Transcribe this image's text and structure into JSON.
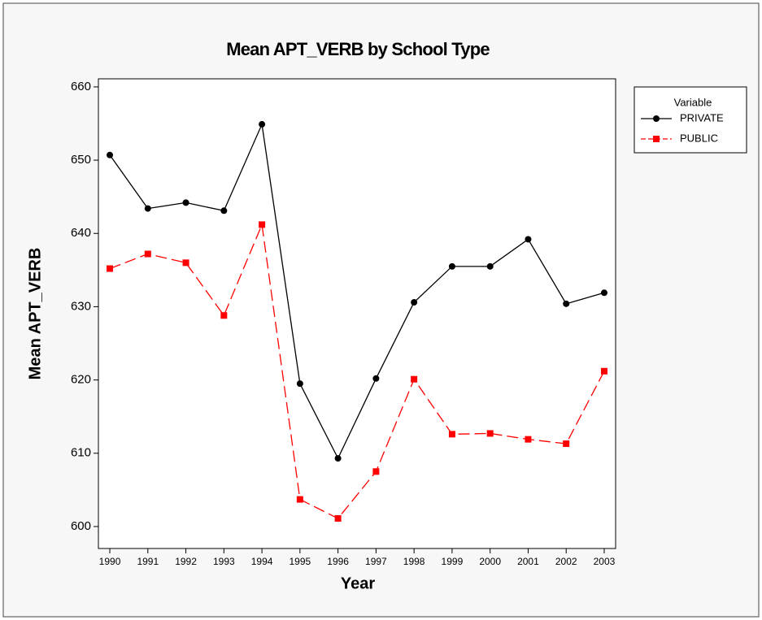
{
  "chart_data": {
    "type": "line",
    "title": "Mean APT_VERB by School Type",
    "x_label": "Year",
    "y_label": "Mean APT_VERB",
    "legend_title": "Variable",
    "x": [
      1990,
      1991,
      1992,
      1993,
      1994,
      1995,
      1996,
      1997,
      1998,
      1999,
      2000,
      2001,
      2002,
      2003
    ],
    "series": [
      {
        "name": "PRIVATE",
        "color": "#000000",
        "marker": "circle",
        "dashed": false,
        "values": [
          650.7,
          643.4,
          644.2,
          643.1,
          654.9,
          619.5,
          609.3,
          620.2,
          630.6,
          635.5,
          635.5,
          639.2,
          630.4,
          631.9
        ]
      },
      {
        "name": "PUBLIC",
        "color": "#ff0000",
        "marker": "square",
        "dashed": true,
        "values": [
          635.2,
          637.2,
          636.0,
          628.8,
          641.2,
          603.7,
          601.1,
          607.5,
          620.1,
          612.6,
          612.7,
          611.9,
          611.3,
          621.2
        ]
      }
    ],
    "xlim": [
      1989.7,
      2003.3
    ],
    "xticks": [
      1990,
      1991,
      1992,
      1993,
      1994,
      1995,
      1996,
      1997,
      1998,
      1999,
      2000,
      2001,
      2002,
      2003
    ],
    "ylim": [
      597,
      661.1
    ],
    "yticks": [
      600,
      610,
      620,
      630,
      640,
      650,
      660
    ],
    "grid": false,
    "legend_position": "right"
  }
}
